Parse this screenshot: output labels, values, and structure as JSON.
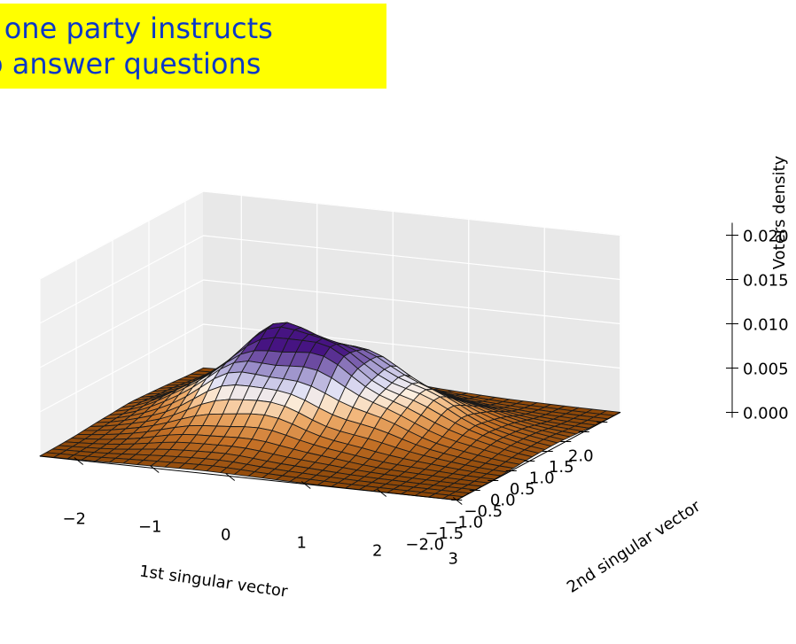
{
  "banner": {
    "line1": "t one party instructs",
    "line2": "o answer questions",
    "background": "#ffff00",
    "text_color": "#0b38c8"
  },
  "chart_data": {
    "type": "surface3d",
    "colormap": "PuOr",
    "grid": true,
    "xlabel": "1st singular vector",
    "ylabel": "2nd singular vector",
    "zlabel": "Voters density",
    "xlim": [
      -2.5,
      3
    ],
    "ylim": [
      -2,
      2.5
    ],
    "zlim": [
      0,
      0.02
    ],
    "x_ticks": [
      "−2",
      "−1",
      "0",
      "1",
      "2",
      "3"
    ],
    "y_ticks": [
      "−2.0",
      "−1.5",
      "−1.0",
      "−0.5",
      "0.0",
      "0.5",
      "1.0",
      "1.5",
      "2.0"
    ],
    "z_ticks": [
      "0.000",
      "0.005",
      "0.010",
      "0.015",
      "0.020"
    ],
    "peaks": [
      {
        "x": -0.5,
        "y": 0.5,
        "z": 0.0095
      },
      {
        "x": 1.0,
        "y": 0.5,
        "z": 0.0045
      }
    ]
  }
}
